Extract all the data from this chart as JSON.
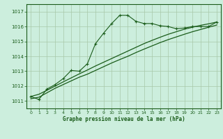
{
  "xlabel": "Graphe pression niveau de la mer (hPa)",
  "background_color": "#cceedd",
  "line_color": "#1a5c1a",
  "grid_color": "#a8c8a8",
  "x_ticks": [
    0,
    1,
    2,
    3,
    4,
    5,
    6,
    7,
    8,
    9,
    10,
    11,
    12,
    13,
    14,
    15,
    16,
    17,
    18,
    19,
    20,
    21,
    22,
    23
  ],
  "y_ticks": [
    1011,
    1012,
    1013,
    1014,
    1015,
    1016,
    1017
  ],
  "ylim": [
    1010.5,
    1017.5
  ],
  "xlim": [
    -0.5,
    23.5
  ],
  "y_jagged": [
    1011.3,
    1011.1,
    1011.8,
    1012.1,
    1012.5,
    1013.05,
    1013.0,
    1013.5,
    1014.85,
    1015.55,
    1016.2,
    1016.75,
    1016.75,
    1016.35,
    1016.2,
    1016.2,
    1016.05,
    1016.0,
    1015.85,
    1015.9,
    1016.0,
    1016.0,
    1016.0,
    1016.3
  ],
  "y_linear1": [
    1011.15,
    1011.25,
    1011.55,
    1011.85,
    1012.1,
    1012.35,
    1012.6,
    1012.8,
    1013.05,
    1013.3,
    1013.55,
    1013.78,
    1014.0,
    1014.25,
    1014.48,
    1014.7,
    1014.92,
    1015.12,
    1015.3,
    1015.48,
    1015.65,
    1015.8,
    1015.95,
    1016.1
  ],
  "y_linear2": [
    1011.3,
    1011.45,
    1011.72,
    1012.0,
    1012.28,
    1012.55,
    1012.82,
    1013.08,
    1013.35,
    1013.6,
    1013.85,
    1014.1,
    1014.35,
    1014.6,
    1014.85,
    1015.07,
    1015.28,
    1015.48,
    1015.65,
    1015.82,
    1015.95,
    1016.08,
    1016.18,
    1016.3
  ]
}
